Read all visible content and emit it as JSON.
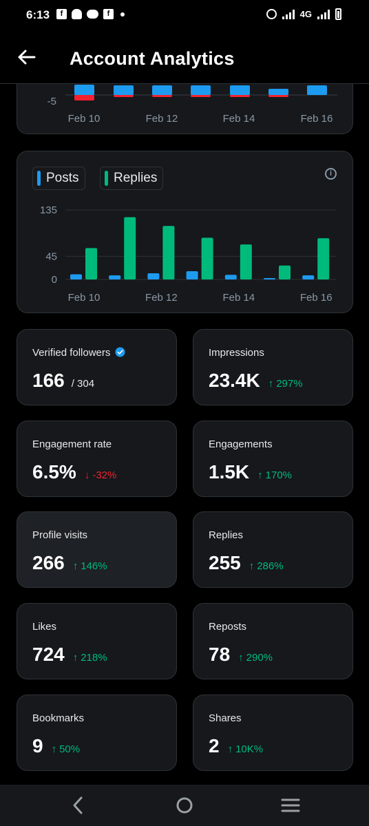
{
  "status_bar": {
    "time": "6:13",
    "network": "4G",
    "notification_icons": [
      "facebook-icon",
      "snapchat-icon",
      "messenger-icon",
      "facebook-icon",
      "dot-icon"
    ]
  },
  "header": {
    "title": "Account Analytics"
  },
  "colors": {
    "posts": "#1d9bf0",
    "replies": "#00ba7c",
    "negative": "#f4212e",
    "positive_change": "#00ba7c",
    "card_bg": "#16181c"
  },
  "top_chart": {
    "tick_labels": [
      "-5"
    ],
    "date_labels": [
      "Feb 10",
      "Feb 12",
      "Feb 14",
      "Feb 16"
    ]
  },
  "chart_data": {
    "type": "bar",
    "title": "",
    "legend": [
      "Posts",
      "Replies"
    ],
    "categories": [
      "Feb 10",
      "Feb 11",
      "Feb 12",
      "Feb 13",
      "Feb 14",
      "Feb 15",
      "Feb 16"
    ],
    "series": [
      {
        "name": "Posts",
        "values": [
          10,
          8,
          12,
          16,
          9,
          2,
          8
        ]
      },
      {
        "name": "Replies",
        "values": [
          61,
          121,
          104,
          81,
          68,
          27,
          80
        ]
      }
    ],
    "yticks": [
      0,
      45,
      135
    ],
    "ylim": [
      0,
      135
    ],
    "xtick_labels": [
      "Feb 10",
      "Feb 12",
      "Feb 14",
      "Feb 16"
    ],
    "grid": true,
    "legend_position": "top-left"
  },
  "metrics": [
    {
      "label": "Verified followers",
      "value": "166",
      "sub": "/ 304",
      "verified": true
    },
    {
      "label": "Impressions",
      "value": "23.4K",
      "change": "297%",
      "direction": "up",
      "arrow": "↑"
    },
    {
      "label": "Engagement rate",
      "value": "6.5%",
      "change": "-32%",
      "direction": "down",
      "arrow": "↓"
    },
    {
      "label": "Engagements",
      "value": "1.5K",
      "change": "170%",
      "direction": "up",
      "arrow": "↑"
    },
    {
      "label": "Profile visits",
      "value": "266",
      "change": "146%",
      "direction": "up",
      "arrow": "↑"
    },
    {
      "label": "Replies",
      "value": "255",
      "change": "286%",
      "direction": "up",
      "arrow": "↑"
    },
    {
      "label": "Likes",
      "value": "724",
      "change": "218%",
      "direction": "up",
      "arrow": "↑"
    },
    {
      "label": "Reposts",
      "value": "78",
      "change": "290%",
      "direction": "up",
      "arrow": "↑"
    },
    {
      "label": "Bookmarks",
      "value": "9",
      "change": "50%",
      "direction": "up",
      "arrow": "↑"
    },
    {
      "label": "Shares",
      "value": "2",
      "change": "10K%",
      "direction": "up",
      "arrow": "↑"
    }
  ],
  "nav_bar": {
    "buttons": [
      "back-nav-icon",
      "home-nav-icon",
      "recents-nav-icon"
    ]
  }
}
